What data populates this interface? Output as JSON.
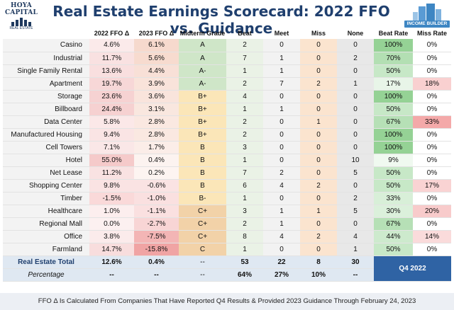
{
  "header": {
    "title": "Real Estate Earnings Scorecard: 2022 FFO vs. Guidance",
    "left_logo_line1": "HOYA CAPITAL",
    "left_logo_line2": "REAL ESTATE",
    "right_logo_label": "INCOME BUILDER"
  },
  "chart_data": {
    "type": "table",
    "title": "Real Estate Earnings Scorecard: 2022 FFO vs. Guidance",
    "columns": [
      "",
      "2022 FFO Δ",
      "2023 FFO Δ",
      "Midterm Grade",
      "Beat",
      "Meet",
      "Miss",
      "None",
      "Beat Rate",
      "Miss Rate"
    ],
    "rows": [
      {
        "sector": "Casino",
        "ffo2022": "4.6%",
        "ffo2023": "6.1%",
        "grade": "A",
        "beat": "2",
        "meet": "0",
        "miss": "0",
        "none": "0",
        "beat_rate": "100%",
        "miss_rate": "0%"
      },
      {
        "sector": "Industrial",
        "ffo2022": "11.7%",
        "ffo2023": "5.6%",
        "grade": "A",
        "beat": "7",
        "meet": "1",
        "miss": "0",
        "none": "2",
        "beat_rate": "70%",
        "miss_rate": "0%"
      },
      {
        "sector": "Single Family Rental",
        "ffo2022": "13.6%",
        "ffo2023": "4.4%",
        "grade": "A-",
        "beat": "1",
        "meet": "1",
        "miss": "0",
        "none": "0",
        "beat_rate": "50%",
        "miss_rate": "0%"
      },
      {
        "sector": "Apartment",
        "ffo2022": "19.7%",
        "ffo2023": "3.9%",
        "grade": "A-",
        "beat": "2",
        "meet": "7",
        "miss": "2",
        "none": "1",
        "beat_rate": "17%",
        "miss_rate": "18%"
      },
      {
        "sector": "Storage",
        "ffo2022": "23.6%",
        "ffo2023": "3.6%",
        "grade": "B+",
        "beat": "4",
        "meet": "0",
        "miss": "0",
        "none": "0",
        "beat_rate": "100%",
        "miss_rate": "0%"
      },
      {
        "sector": "Billboard",
        "ffo2022": "24.4%",
        "ffo2023": "3.1%",
        "grade": "B+",
        "beat": "1",
        "meet": "1",
        "miss": "0",
        "none": "0",
        "beat_rate": "50%",
        "miss_rate": "0%"
      },
      {
        "sector": "Data Center",
        "ffo2022": "5.8%",
        "ffo2023": "2.8%",
        "grade": "B+",
        "beat": "2",
        "meet": "0",
        "miss": "1",
        "none": "0",
        "beat_rate": "67%",
        "miss_rate": "33%"
      },
      {
        "sector": "Manufactured Housing",
        "ffo2022": "9.4%",
        "ffo2023": "2.8%",
        "grade": "B+",
        "beat": "2",
        "meet": "0",
        "miss": "0",
        "none": "0",
        "beat_rate": "100%",
        "miss_rate": "0%"
      },
      {
        "sector": "Cell Towers",
        "ffo2022": "7.1%",
        "ffo2023": "1.7%",
        "grade": "B",
        "beat": "3",
        "meet": "0",
        "miss": "0",
        "none": "0",
        "beat_rate": "100%",
        "miss_rate": "0%"
      },
      {
        "sector": "Hotel",
        "ffo2022": "55.0%",
        "ffo2023": "0.4%",
        "grade": "B",
        "beat": "1",
        "meet": "0",
        "miss": "0",
        "none": "10",
        "beat_rate": "9%",
        "miss_rate": "0%"
      },
      {
        "sector": "Net Lease",
        "ffo2022": "11.2%",
        "ffo2023": "0.2%",
        "grade": "B",
        "beat": "7",
        "meet": "2",
        "miss": "0",
        "none": "5",
        "beat_rate": "50%",
        "miss_rate": "0%"
      },
      {
        "sector": "Shopping Center",
        "ffo2022": "9.8%",
        "ffo2023": "-0.6%",
        "grade": "B",
        "beat": "6",
        "meet": "4",
        "miss": "2",
        "none": "0",
        "beat_rate": "50%",
        "miss_rate": "17%"
      },
      {
        "sector": "Timber",
        "ffo2022": "-1.5%",
        "ffo2023": "-1.0%",
        "grade": "B-",
        "beat": "1",
        "meet": "0",
        "miss": "0",
        "none": "2",
        "beat_rate": "33%",
        "miss_rate": "0%"
      },
      {
        "sector": "Healthcare",
        "ffo2022": "1.0%",
        "ffo2023": "-1.1%",
        "grade": "C+",
        "beat": "3",
        "meet": "1",
        "miss": "1",
        "none": "5",
        "beat_rate": "30%",
        "miss_rate": "20%"
      },
      {
        "sector": "Regional Mall",
        "ffo2022": "0.0%",
        "ffo2023": "-2.7%",
        "grade": "C+",
        "beat": "2",
        "meet": "1",
        "miss": "0",
        "none": "0",
        "beat_rate": "67%",
        "miss_rate": "0%"
      },
      {
        "sector": "Office",
        "ffo2022": "3.8%",
        "ffo2023": "-7.5%",
        "grade": "C+",
        "beat": "8",
        "meet": "4",
        "miss": "2",
        "none": "4",
        "beat_rate": "44%",
        "miss_rate": "14%"
      },
      {
        "sector": "Farmland",
        "ffo2022": "14.7%",
        "ffo2023": "-15.8%",
        "grade": "C",
        "beat": "1",
        "meet": "0",
        "miss": "0",
        "none": "1",
        "beat_rate": "50%",
        "miss_rate": "0%"
      }
    ],
    "total": {
      "label": "Real Estate Total",
      "ffo2022": "12.6%",
      "ffo2023": "0.4%",
      "grade": "--",
      "beat": "53",
      "meet": "22",
      "miss": "8",
      "none": "30"
    },
    "percentage": {
      "label": "Percentage",
      "ffo2022": "--",
      "ffo2023": "--",
      "grade": "--",
      "beat": "64%",
      "meet": "27%",
      "miss": "10%",
      "none": "--"
    },
    "period_badge": "Q4 2022"
  },
  "footer": {
    "note": "FFO Δ Is Calculated From Companies That Have Reported Q4 Results & Provided 2023 Guidance Through February 24, 2023"
  },
  "colors": {
    "title": "#1f3f6e",
    "accent": "#2f63a4",
    "positive": "#d3efd3",
    "negative": "#f6d3d3"
  }
}
